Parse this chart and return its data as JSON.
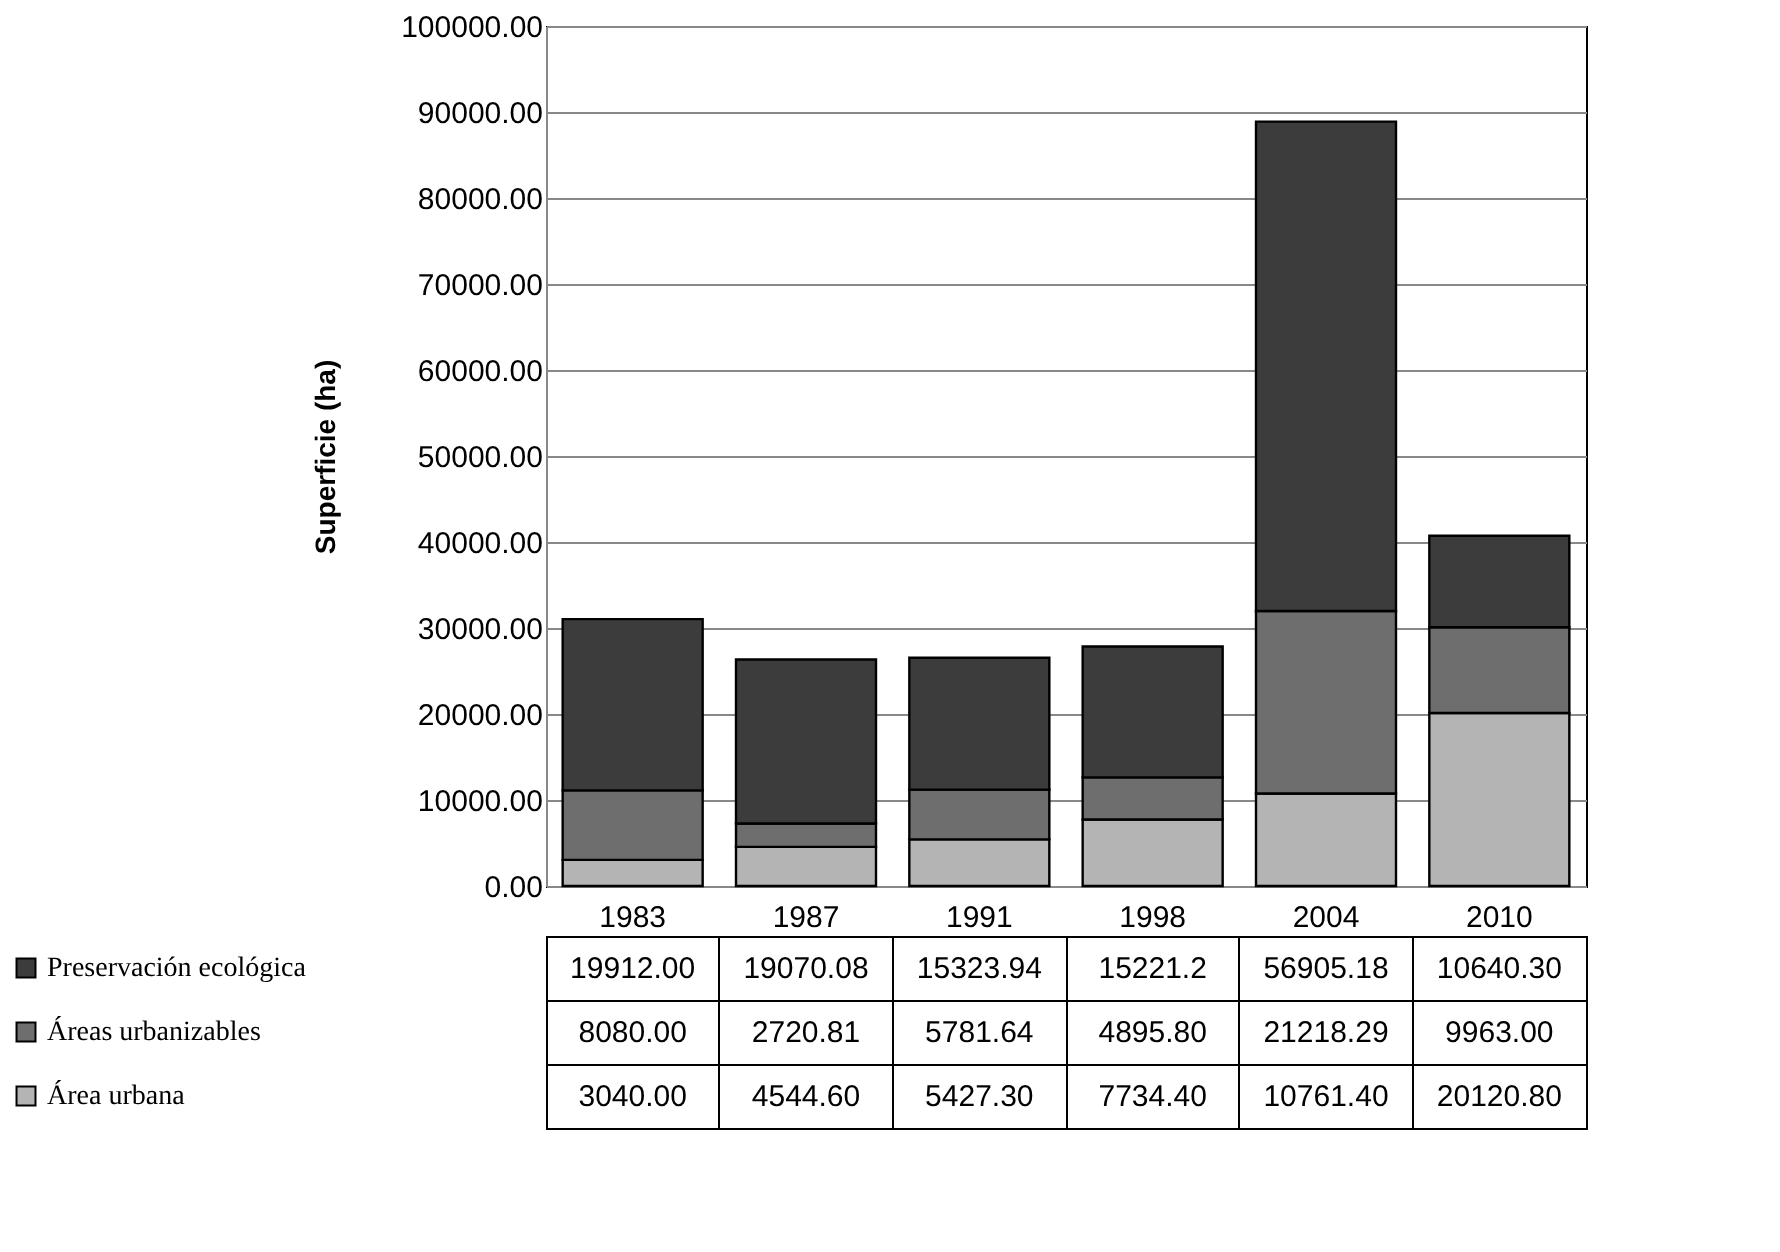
{
  "chart_data": {
    "type": "bar",
    "stacked": true,
    "ylabel": "Superficie (ha)",
    "categories": [
      "1983",
      "1987",
      "1991",
      "1998",
      "2004",
      "2010"
    ],
    "series": [
      {
        "name": "Área urbana",
        "color": "#b4b4b4",
        "values": [
          3040.0,
          4544.6,
          5427.3,
          7734.4,
          10761.4,
          20120.8
        ],
        "value_labels": [
          "3040.00",
          "4544.60",
          "5427.30",
          "7734.40",
          "10761.40",
          "20120.80"
        ]
      },
      {
        "name": "Áreas urbanizables",
        "color": "#6e6e6e",
        "values": [
          8080.0,
          2720.81,
          5781.64,
          4895.8,
          21218.29,
          9963.0
        ],
        "value_labels": [
          "8080.00",
          "2720.81",
          "5781.64",
          "4895.80",
          "21218.29",
          "9963.00"
        ]
      },
      {
        "name": "Preservación ecológica",
        "color": "#3c3c3c",
        "values": [
          19912.0,
          19070.08,
          15323.94,
          15221.2,
          56905.18,
          10640.3
        ],
        "value_labels": [
          "19912.00",
          "19070.08",
          "15323.94",
          "15221.2",
          "56905.18",
          "10640.30"
        ]
      }
    ],
    "ylim": [
      0,
      100000
    ],
    "yticks": [
      {
        "value": 0,
        "label": "0.00"
      },
      {
        "value": 10000,
        "label": "10000.00"
      },
      {
        "value": 20000,
        "label": "20000.00"
      },
      {
        "value": 30000,
        "label": "30000.00"
      },
      {
        "value": 40000,
        "label": "40000.00"
      },
      {
        "value": 50000,
        "label": "50000.00"
      },
      {
        "value": 60000,
        "label": "60000.00"
      },
      {
        "value": 70000,
        "label": "70000.00"
      },
      {
        "value": 80000,
        "label": "80000.00"
      },
      {
        "value": 90000,
        "label": "90000.00"
      },
      {
        "value": 100000,
        "label": "100000.00"
      }
    ],
    "grid": "y",
    "legend": "bottom"
  }
}
